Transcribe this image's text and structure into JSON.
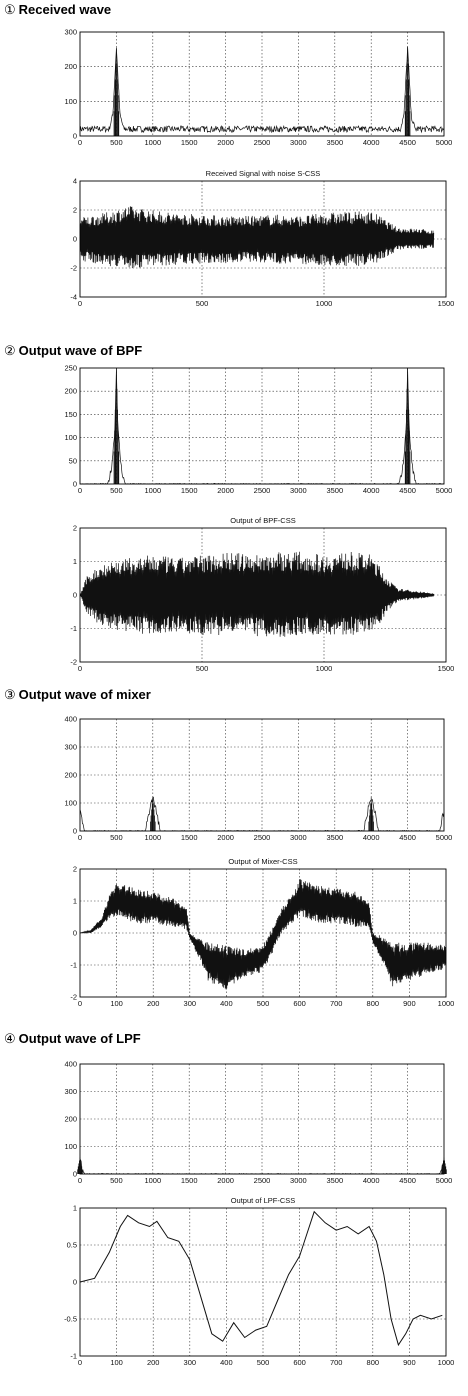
{
  "sections": [
    {
      "num": "①",
      "title": "Received wave"
    },
    {
      "num": "②",
      "title": "Output wave of BPF"
    },
    {
      "num": "③",
      "title": "Output wave of mixer"
    },
    {
      "num": "④",
      "title": "Output wave of LPF"
    }
  ],
  "chart_data": [
    {
      "type": "line",
      "section": 1,
      "panel": "spectrum",
      "title": "",
      "xlim": [
        0,
        5000
      ],
      "ylim": [
        0,
        300
      ],
      "xticks": [
        0,
        500,
        1000,
        1500,
        2000,
        2500,
        3000,
        3500,
        4000,
        4500,
        5000
      ],
      "yticks": [
        0,
        100,
        200,
        300
      ],
      "x": [
        0,
        400,
        450,
        500,
        550,
        600,
        1000,
        2500,
        4000,
        4400,
        4450,
        4500,
        4550,
        4600,
        5000
      ],
      "y": [
        20,
        20,
        60,
        255,
        60,
        20,
        20,
        20,
        20,
        20,
        60,
        255,
        60,
        20,
        20
      ],
      "grid": true
    },
    {
      "type": "line",
      "section": 1,
      "panel": "time",
      "title": "Received Signal with noise S-CSS",
      "xlim": [
        0,
        1500
      ],
      "ylim": [
        -4,
        4
      ],
      "xticks": [
        0,
        500,
        1000,
        1500
      ],
      "yticks": [
        -4,
        -2,
        0,
        2,
        4
      ],
      "x": [
        0,
        100,
        200,
        300,
        400,
        500,
        600,
        700,
        800,
        900,
        1000,
        1100,
        1200,
        1300,
        1400,
        1450
      ],
      "y_upper": [
        1.5,
        1.8,
        2.3,
        2.0,
        1.8,
        1.7,
        1.6,
        1.6,
        1.7,
        1.6,
        1.8,
        1.9,
        1.9,
        0.8,
        0.7,
        0.6
      ],
      "y_lower": [
        -1.5,
        -1.8,
        -2.1,
        -1.9,
        -1.8,
        -1.7,
        -1.7,
        -1.6,
        -1.7,
        -1.7,
        -1.9,
        -1.9,
        -1.8,
        -0.8,
        -0.7,
        -0.6
      ],
      "grid": true
    },
    {
      "type": "line",
      "section": 2,
      "panel": "spectrum",
      "title": "",
      "xlim": [
        0,
        5000
      ],
      "ylim": [
        0,
        250
      ],
      "xticks": [
        0,
        500,
        1000,
        1500,
        2000,
        2500,
        3000,
        3500,
        4000,
        4500,
        5000
      ],
      "yticks": [
        0,
        50,
        100,
        150,
        200,
        250
      ],
      "x": [
        0,
        380,
        430,
        480,
        500,
        520,
        570,
        620,
        4380,
        4430,
        4480,
        4500,
        4520,
        4570,
        4620,
        5000
      ],
      "y": [
        0,
        0,
        30,
        120,
        250,
        120,
        30,
        0,
        0,
        30,
        120,
        250,
        120,
        30,
        0,
        0
      ],
      "grid": true
    },
    {
      "type": "line",
      "section": 2,
      "panel": "time",
      "title": "Output of BPF-CSS",
      "xlim": [
        0,
        1500
      ],
      "ylim": [
        -2,
        2
      ],
      "xticks": [
        0,
        500,
        1000,
        1500
      ],
      "yticks": [
        -2,
        -1,
        0,
        1,
        2
      ],
      "x": [
        0,
        30,
        100,
        200,
        300,
        400,
        500,
        600,
        700,
        800,
        900,
        1000,
        1100,
        1200,
        1250,
        1300,
        1350,
        1400,
        1450
      ],
      "y_upper": [
        0,
        0.6,
        1.0,
        1.1,
        1.2,
        1.1,
        1.2,
        1.3,
        1.2,
        1.3,
        1.3,
        1.2,
        1.3,
        1.2,
        0.6,
        0.2,
        0.15,
        0.1,
        0.05
      ],
      "y_lower": [
        0,
        -0.6,
        -1.0,
        -1.1,
        -1.2,
        -1.1,
        -1.2,
        -1.2,
        -1.2,
        -1.3,
        -1.2,
        -1.2,
        -1.2,
        -1.2,
        -0.6,
        -0.2,
        -0.15,
        -0.1,
        -0.05
      ],
      "grid": true
    },
    {
      "type": "line",
      "section": 3,
      "panel": "spectrum",
      "title": "",
      "xlim": [
        0,
        5000
      ],
      "ylim": [
        0,
        400
      ],
      "xticks": [
        0,
        500,
        1000,
        1500,
        2000,
        2500,
        3000,
        3500,
        4000,
        4500,
        5000
      ],
      "yticks": [
        0,
        100,
        200,
        300,
        400
      ],
      "x": [
        0,
        30,
        60,
        900,
        950,
        1000,
        1050,
        1100,
        3900,
        3950,
        4000,
        4050,
        4100,
        4940,
        4970,
        5000
      ],
      "y": [
        70,
        40,
        0,
        0,
        70,
        120,
        70,
        0,
        0,
        70,
        120,
        70,
        0,
        0,
        40,
        70
      ],
      "grid": true
    },
    {
      "type": "line",
      "section": 3,
      "panel": "time",
      "title": "Output of Mixer-CSS",
      "xlim": [
        0,
        1000
      ],
      "ylim": [
        -2,
        2
      ],
      "xticks": [
        0,
        100,
        200,
        300,
        400,
        500,
        600,
        700,
        800,
        900,
        1000
      ],
      "yticks": [
        -2,
        -1,
        0,
        1,
        2
      ],
      "x": [
        0,
        30,
        60,
        80,
        100,
        150,
        200,
        250,
        290,
        300,
        330,
        350,
        400,
        450,
        500,
        550,
        580,
        600,
        650,
        700,
        750,
        790,
        800,
        830,
        850,
        900,
        950,
        1000
      ],
      "y_upper": [
        0,
        0.1,
        0.5,
        1.2,
        1.6,
        1.4,
        1.3,
        1.1,
        0.9,
        0,
        -0.2,
        -0.3,
        -0.4,
        -0.5,
        -0.4,
        0.8,
        1.2,
        1.7,
        1.5,
        1.4,
        1.3,
        1.0,
        0,
        -0.1,
        -0.3,
        -0.3,
        -0.3,
        -0.4
      ],
      "y_lower": [
        0,
        0.0,
        0.2,
        0.4,
        0.5,
        0.3,
        0.3,
        0.2,
        0.1,
        -0.2,
        -0.9,
        -1.5,
        -1.8,
        -1.4,
        -1.2,
        -0.1,
        0.3,
        0.5,
        0.3,
        0.3,
        0.2,
        0.1,
        -0.3,
        -1.0,
        -1.7,
        -1.5,
        -1.3,
        -1.1
      ],
      "grid": true
    },
    {
      "type": "line",
      "section": 4,
      "panel": "spectrum",
      "title": "",
      "xlim": [
        0,
        5000
      ],
      "ylim": [
        0,
        400
      ],
      "xticks": [
        0,
        500,
        1000,
        1500,
        2000,
        2500,
        3000,
        3500,
        4000,
        4500,
        5000
      ],
      "yticks": [
        0,
        100,
        200,
        300,
        400
      ],
      "x": [
        0,
        20,
        50,
        80,
        4920,
        4950,
        4980,
        5000
      ],
      "y": [
        60,
        30,
        5,
        0,
        0,
        5,
        30,
        60
      ],
      "grid": true
    },
    {
      "type": "line",
      "section": 4,
      "panel": "time",
      "title": "Output of LPF-CSS",
      "xlim": [
        0,
        1000
      ],
      "ylim": [
        -1,
        1
      ],
      "xticks": [
        0,
        100,
        200,
        300,
        400,
        500,
        600,
        700,
        800,
        900,
        1000
      ],
      "yticks": [
        -1,
        -0.5,
        0,
        0.5,
        1
      ],
      "x": [
        0,
        40,
        80,
        110,
        130,
        160,
        190,
        210,
        240,
        270,
        300,
        330,
        360,
        390,
        420,
        450,
        480,
        510,
        540,
        570,
        600,
        620,
        640,
        670,
        700,
        730,
        760,
        790,
        810,
        830,
        850,
        870,
        890,
        910,
        930,
        960,
        990
      ],
      "y": [
        0,
        0.05,
        0.4,
        0.75,
        0.9,
        0.8,
        0.75,
        0.82,
        0.6,
        0.55,
        0.3,
        -0.2,
        -0.7,
        -0.8,
        -0.55,
        -0.75,
        -0.65,
        -0.6,
        -0.25,
        0.1,
        0.35,
        0.65,
        0.95,
        0.8,
        0.7,
        0.75,
        0.65,
        0.75,
        0.55,
        0.1,
        -0.5,
        -0.85,
        -0.7,
        -0.5,
        -0.45,
        -0.5,
        -0.45
      ],
      "grid": true
    }
  ]
}
